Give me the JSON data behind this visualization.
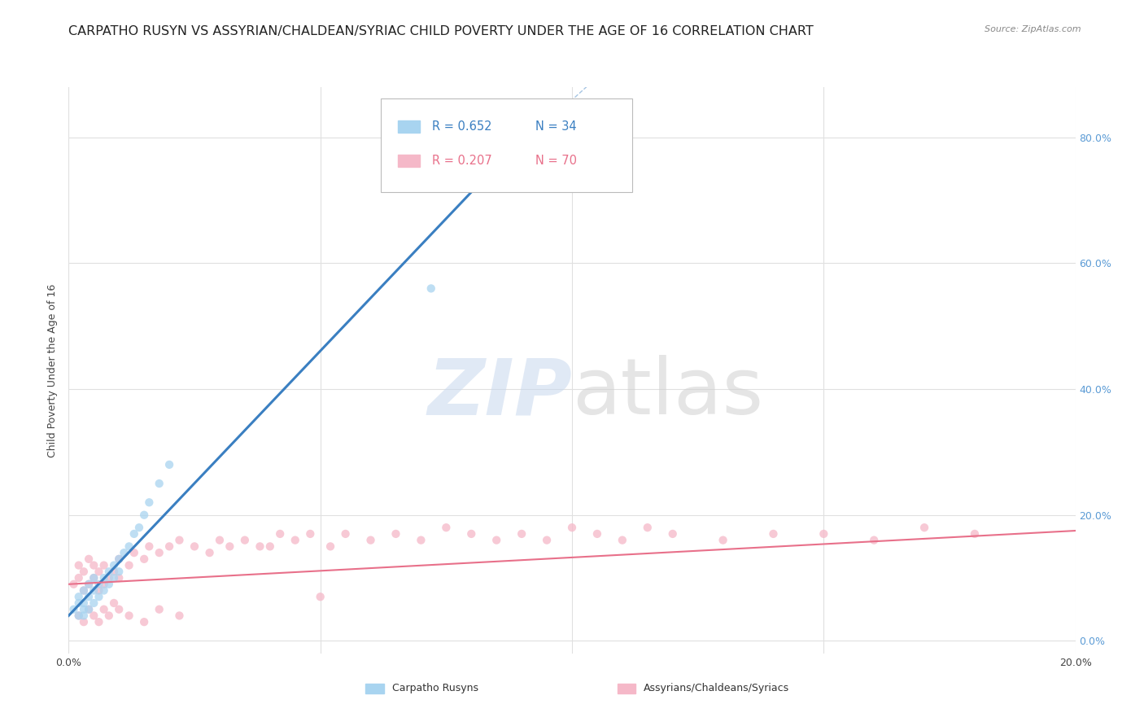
{
  "title": "CARPATHO RUSYN VS ASSYRIAN/CHALDEAN/SYRIAC CHILD POVERTY UNDER THE AGE OF 16 CORRELATION CHART",
  "source_text": "Source: ZipAtlas.com",
  "ylabel": "Child Poverty Under the Age of 16",
  "xlim": [
    0.0,
    0.2
  ],
  "ylim": [
    -0.02,
    0.88
  ],
  "blue_color": "#a8d4f0",
  "pink_color": "#f5b8c8",
  "blue_line_color": "#3a7fc1",
  "pink_line_color": "#e8708a",
  "background_color": "#ffffff",
  "grid_color": "#e0e0e0",
  "right_tick_color": "#5b9bd5",
  "title_color": "#222222",
  "title_fontsize": 11.5,
  "axis_label_fontsize": 9,
  "tick_fontsize": 9,
  "marker_size": 55,
  "blue_scatter_x": [
    0.001,
    0.002,
    0.002,
    0.002,
    0.003,
    0.003,
    0.003,
    0.003,
    0.004,
    0.004,
    0.004,
    0.005,
    0.005,
    0.005,
    0.006,
    0.006,
    0.007,
    0.007,
    0.008,
    0.008,
    0.009,
    0.009,
    0.01,
    0.01,
    0.011,
    0.012,
    0.013,
    0.014,
    0.015,
    0.016,
    0.018,
    0.02,
    0.072,
    0.095
  ],
  "blue_scatter_y": [
    0.05,
    0.06,
    0.04,
    0.07,
    0.05,
    0.06,
    0.08,
    0.04,
    0.07,
    0.05,
    0.09,
    0.08,
    0.06,
    0.1,
    0.09,
    0.07,
    0.1,
    0.08,
    0.11,
    0.09,
    0.12,
    0.1,
    0.13,
    0.11,
    0.14,
    0.15,
    0.17,
    0.18,
    0.2,
    0.22,
    0.25,
    0.28,
    0.56,
    0.73
  ],
  "pink_scatter_x": [
    0.001,
    0.002,
    0.002,
    0.003,
    0.003,
    0.004,
    0.004,
    0.005,
    0.005,
    0.006,
    0.006,
    0.007,
    0.007,
    0.008,
    0.009,
    0.01,
    0.01,
    0.012,
    0.013,
    0.015,
    0.016,
    0.018,
    0.02,
    0.022,
    0.025,
    0.028,
    0.03,
    0.032,
    0.035,
    0.038,
    0.04,
    0.042,
    0.045,
    0.048,
    0.052,
    0.055,
    0.06,
    0.065,
    0.07,
    0.075,
    0.08,
    0.085,
    0.09,
    0.095,
    0.1,
    0.105,
    0.11,
    0.115,
    0.12,
    0.13,
    0.14,
    0.15,
    0.16,
    0.17,
    0.18,
    0.002,
    0.003,
    0.004,
    0.005,
    0.006,
    0.007,
    0.008,
    0.009,
    0.01,
    0.012,
    0.015,
    0.018,
    0.022,
    0.05
  ],
  "pink_scatter_y": [
    0.09,
    0.1,
    0.12,
    0.08,
    0.11,
    0.09,
    0.13,
    0.1,
    0.12,
    0.08,
    0.11,
    0.09,
    0.12,
    0.1,
    0.11,
    0.1,
    0.13,
    0.12,
    0.14,
    0.13,
    0.15,
    0.14,
    0.15,
    0.16,
    0.15,
    0.14,
    0.16,
    0.15,
    0.16,
    0.15,
    0.15,
    0.17,
    0.16,
    0.17,
    0.15,
    0.17,
    0.16,
    0.17,
    0.16,
    0.18,
    0.17,
    0.16,
    0.17,
    0.16,
    0.18,
    0.17,
    0.16,
    0.18,
    0.17,
    0.16,
    0.17,
    0.17,
    0.16,
    0.18,
    0.17,
    0.04,
    0.03,
    0.05,
    0.04,
    0.03,
    0.05,
    0.04,
    0.06,
    0.05,
    0.04,
    0.03,
    0.05,
    0.04,
    0.07
  ],
  "blue_regline_x": [
    0.0,
    0.082
  ],
  "blue_regline_y": [
    0.04,
    0.73
  ],
  "blue_dashline_x": [
    0.082,
    0.175
  ],
  "blue_dashline_y": [
    0.73,
    1.4
  ],
  "pink_regline_x": [
    0.0,
    0.2
  ],
  "pink_regline_y": [
    0.09,
    0.175
  ],
  "watermark_zip_color": "#c8d8ee",
  "watermark_atlas_color": "#d0d0d0"
}
